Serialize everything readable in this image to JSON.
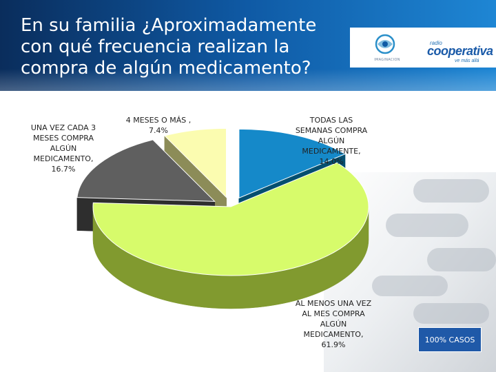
{
  "slide": {
    "title": "En su familia ¿Aproximadamente con qué frecuencia realizan la compra de algún medicamento?",
    "badge": "100% CASOS",
    "logo_left_text": "IMAGINACION",
    "brand_small": "radio",
    "brand_name": "cooperativa",
    "brand_tagline": "ve más allá"
  },
  "colors": {
    "header": "#0f5aa5",
    "badge": "#1f59a8"
  },
  "chart_data": {
    "type": "pie",
    "style": "3d-exploded",
    "title": "",
    "slices": [
      {
        "label": "TODAS LAS SEMANAS COMPRA ALGÚN MEDICAMENTE, 14.0%",
        "value": 14.0,
        "color": "#1589c9",
        "side": "#044f6f"
      },
      {
        "label": "AL MENOS UNA VEZ AL MES COMPRA ALGÚN MEDICAMENTO, 61.9%",
        "value": 61.9,
        "color": "#d7fb6b",
        "side": "#819a2f"
      },
      {
        "label": "UNA VEZ CADA 3 MESES COMPRA ALGÚN MEDICAMENTO, 16.7%",
        "value": 16.7,
        "color": "#5f5f5f",
        "side": "#2e2e2e"
      },
      {
        "label": "4 MESES O MÁS , 7.4%",
        "value": 7.4,
        "color": "#fbfcb0",
        "side": "#8c8c58"
      }
    ]
  }
}
